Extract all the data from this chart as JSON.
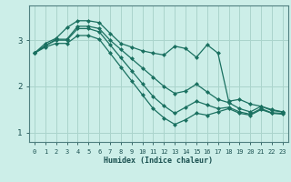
{
  "xlabel": "Humidex (Indice chaleur)",
  "bg_color": "#cceee8",
  "grid_color": "#aad4cc",
  "line_color": "#1a7060",
  "xlim": [
    -0.5,
    23.5
  ],
  "ylim": [
    0.8,
    3.75
  ],
  "yticks": [
    1,
    2,
    3
  ],
  "xticks": [
    0,
    1,
    2,
    3,
    4,
    5,
    6,
    7,
    8,
    9,
    10,
    11,
    12,
    13,
    14,
    15,
    16,
    17,
    18,
    19,
    20,
    21,
    22,
    23
  ],
  "lines": [
    [
      2.72,
      2.93,
      3.04,
      3.27,
      3.42,
      3.42,
      3.38,
      3.15,
      2.93,
      2.85,
      2.77,
      2.72,
      2.68,
      2.87,
      2.82,
      2.63,
      2.9,
      2.72,
      1.68,
      1.72,
      1.62,
      1.57,
      1.5,
      1.45
    ],
    [
      2.72,
      2.88,
      3.02,
      3.02,
      3.3,
      3.3,
      3.25,
      3.0,
      2.8,
      2.6,
      2.4,
      2.2,
      2.0,
      1.85,
      1.9,
      2.05,
      1.88,
      1.72,
      1.65,
      1.52,
      1.45,
      1.57,
      1.48,
      1.45
    ],
    [
      2.72,
      2.88,
      3.0,
      3.0,
      3.25,
      3.25,
      3.18,
      2.9,
      2.62,
      2.34,
      2.06,
      1.78,
      1.58,
      1.42,
      1.55,
      1.68,
      1.6,
      1.52,
      1.55,
      1.45,
      1.4,
      1.52,
      1.43,
      1.42
    ],
    [
      2.72,
      2.85,
      2.93,
      2.93,
      3.1,
      3.1,
      3.02,
      2.72,
      2.42,
      2.12,
      1.82,
      1.52,
      1.32,
      1.18,
      1.28,
      1.42,
      1.38,
      1.45,
      1.52,
      1.42,
      1.38,
      1.5,
      1.42,
      1.4
    ]
  ]
}
